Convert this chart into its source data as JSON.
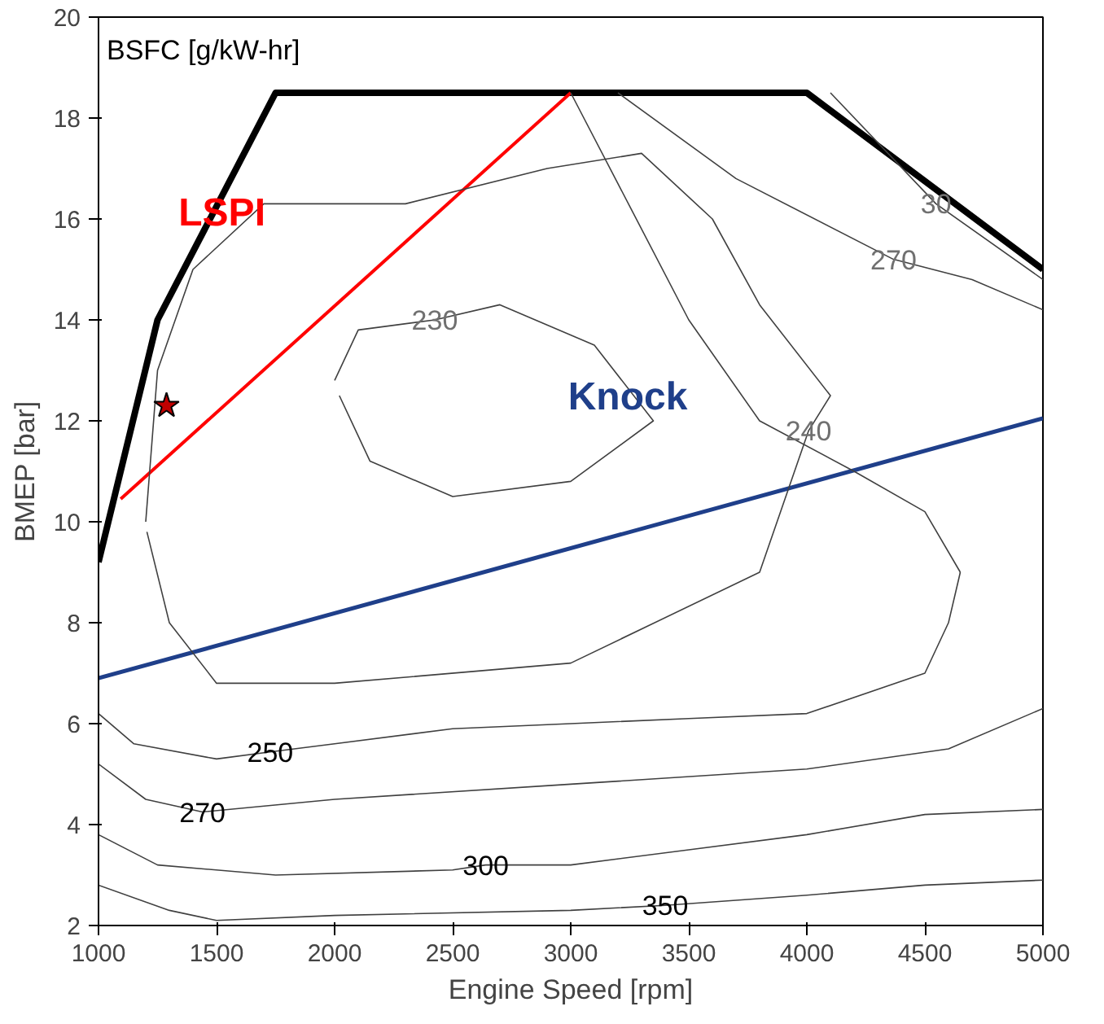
{
  "chart_data": {
    "type": "line",
    "xlabel": "Engine Speed [rpm]",
    "ylabel": "BMEP [bar]",
    "xlim": [
      1000,
      5000
    ],
    "xticks": [
      1000,
      1500,
      2000,
      2500,
      3000,
      3500,
      4000,
      4500,
      5000
    ],
    "ylim": [
      2,
      20
    ],
    "yticks": [
      2,
      4,
      6,
      8,
      10,
      12,
      14,
      16,
      18,
      20
    ],
    "grid": false,
    "marker": "none",
    "line_style": "solid",
    "series": [
      {
        "color": "#000000",
        "x": [
          1000,
          1250,
          1750,
          4000,
          5000
        ],
        "values": [
          9.2,
          14,
          18.5,
          18.5,
          15
        ]
      },
      {
        "name": "Knock",
        "color": "#1f3f8a",
        "x": [
          1000,
          5000
        ],
        "values": [
          6.9,
          12.05
        ]
      },
      {
        "name": "LSPI",
        "color": "#ff0000",
        "x": [
          1094,
          3000
        ],
        "values": [
          10.45,
          18.5
        ]
      },
      {
        "color": "#404040",
        "x": [
          1000,
          1300,
          1500,
          2000,
          3000,
          3400,
          4000,
          4500,
          5000
        ],
        "values": [
          2.8,
          2.3,
          2.1,
          2.2,
          2.3,
          2.4,
          2.6,
          2.8,
          2.9
        ]
      },
      {
        "color": "#404040",
        "x": [
          1000,
          1250,
          1750,
          2500,
          2640,
          3000,
          3500,
          4000,
          4500,
          5000
        ],
        "values": [
          3.8,
          3.2,
          3.0,
          3.1,
          3.2,
          3.2,
          3.5,
          3.8,
          4.2,
          4.3
        ]
      },
      {
        "color": "#404040",
        "x": [
          1000,
          1200,
          1440,
          2000,
          3000,
          4000,
          4600,
          5000
        ],
        "values": [
          5.2,
          4.5,
          4.25,
          4.5,
          4.8,
          5.1,
          5.5,
          6.3
        ]
      },
      {
        "color": "#404040",
        "x": [
          1000,
          1150,
          1500,
          1727,
          2000,
          2500,
          3000,
          3500,
          4000,
          4500,
          4600,
          4650
        ],
        "values": [
          6.2,
          5.6,
          5.3,
          5.44,
          5.6,
          5.9,
          6.0,
          6.1,
          6.2,
          7.0,
          8.0,
          9.0
        ]
      },
      {
        "color": "#404040",
        "x": [
          3000,
          3500,
          3800,
          4200,
          4500,
          4650
        ],
        "values": [
          18.5,
          14.0,
          12.0,
          11.0,
          10.2,
          9.0
        ]
      },
      {
        "color": "#404040",
        "x": [
          1200,
          1250,
          1400,
          1700,
          2300,
          2900,
          3300,
          3600,
          3800,
          4100,
          4007,
          3800,
          3000,
          2000,
          1500,
          1300,
          1205
        ],
        "values": [
          10,
          13,
          15,
          16.3,
          16.3,
          17.0,
          17.3,
          16.0,
          14.3,
          12.5,
          11.8,
          9.0,
          7.2,
          6.8,
          6.8,
          8.0,
          9.8
        ]
      },
      {
        "color": "#404040",
        "x": [
          2000,
          2100,
          2424,
          2700,
          3100,
          3350,
          3000,
          2500,
          2150,
          2020
        ],
        "values": [
          12.8,
          13.8,
          14.0,
          14.3,
          13.5,
          12.0,
          10.8,
          10.5,
          11.2,
          12.5
        ]
      },
      {
        "color": "#404040",
        "x": [
          3200,
          3700,
          4367,
          4700,
          5000
        ],
        "values": [
          18.5,
          16.8,
          15.2,
          14.8,
          14.2
        ]
      },
      {
        "color": "#404040",
        "x": [
          4100,
          4547,
          5000
        ],
        "values": [
          18.5,
          16.3,
          14.8
        ]
      },
      {
        "type": "scatter",
        "marker": "star",
        "color": "#c00000",
        "x": [
          1288
        ],
        "values": [
          12.3
        ]
      }
    ],
    "annotations": [
      "BSFC [g/kW-hr]",
      {
        "text": "230",
        "x": 2424,
        "y": 14.0
      },
      {
        "text": "240",
        "x": 4007,
        "y": 11.8
      },
      {
        "text": "250",
        "x": 1727,
        "y": 5.44
      },
      {
        "text": "270",
        "x": 1440,
        "y": 4.25
      },
      {
        "text": "300",
        "x": 2640,
        "y": 3.2
      },
      {
        "text": "350",
        "x": 3400,
        "y": 2.4
      },
      {
        "text": "270",
        "x": 4367,
        "y": 15.2
      },
      {
        "text": "30",
        "x": 4547,
        "y": 16.3
      }
    ]
  }
}
